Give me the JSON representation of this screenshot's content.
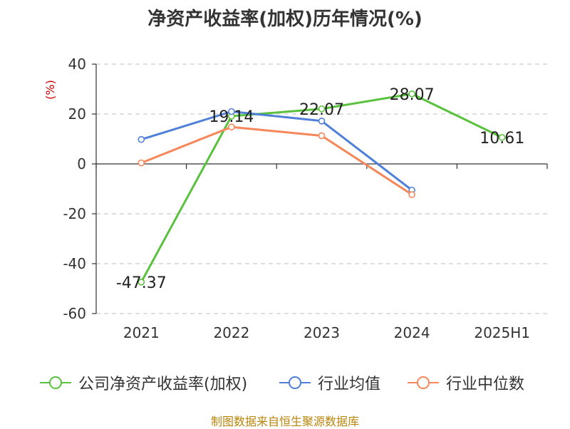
{
  "title": "净资产收益率(加权)历年情况(%)",
  "source": "制图数据来自恒生聚源数据库",
  "chart_data": {
    "type": "line",
    "title": "净资产收益率(加权)历年情况(%)",
    "ylabel": "(%)",
    "xlabel": "",
    "categories": [
      "2021",
      "2022",
      "2023",
      "2024",
      "2025H1"
    ],
    "ylim": [
      -60,
      40
    ],
    "yticks": [
      40,
      20,
      0,
      -20,
      -40,
      -60
    ],
    "grid": true,
    "legend_position": "bottom",
    "series": [
      {
        "name": "公司净资产收益率(加权)",
        "color": "#5ac13f",
        "values": [
          -47.37,
          19.14,
          22.07,
          28.07,
          10.61
        ],
        "labels": [
          "-47.37",
          "19.14",
          "22.07",
          "28.07",
          "10.61"
        ]
      },
      {
        "name": "行业均值",
        "color": "#4f80d9",
        "values": [
          9.8,
          21.0,
          17.2,
          -10.5,
          null
        ]
      },
      {
        "name": "行业中位数",
        "color": "#f5875a",
        "values": [
          0.4,
          14.8,
          11.3,
          -12.3,
          null
        ]
      }
    ]
  }
}
